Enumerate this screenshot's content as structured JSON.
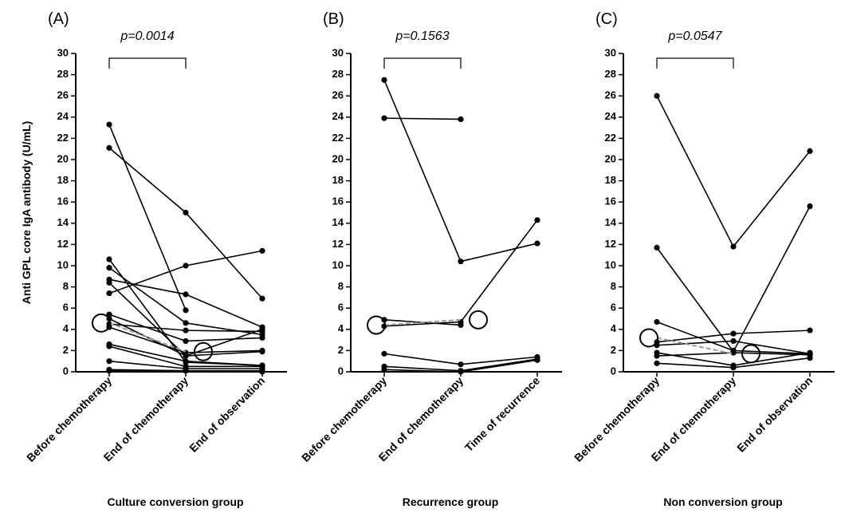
{
  "chart_data": [
    {
      "type": "line",
      "title": "(A)",
      "annotation": "p=0.0014",
      "xlabel": "Culture conversion group",
      "ylabel": "Anti GPL core IgA antibody (U/mL)",
      "categories": [
        "Before chemotherapy",
        "End of chemotherapy",
        "End of observation"
      ],
      "ylim": [
        0,
        30
      ],
      "yticks": [
        0,
        2,
        4,
        6,
        8,
        10,
        12,
        14,
        16,
        18,
        20,
        22,
        24,
        26,
        28,
        30
      ],
      "series": [
        {
          "color": "#000000",
          "values": [
            23.3,
            5.8,
            null
          ]
        },
        {
          "color": "#000000",
          "values": [
            21.1,
            15.0,
            6.9
          ]
        },
        {
          "color": "#000000",
          "values": [
            10.6,
            0.9,
            0.6
          ]
        },
        {
          "color": "#000000",
          "values": [
            9.8,
            4.6,
            3.5
          ]
        },
        {
          "color": "#000000",
          "values": [
            8.7,
            7.3,
            4.2
          ]
        },
        {
          "color": "#000000",
          "values": [
            8.4,
            1.5,
            1.9
          ]
        },
        {
          "color": "#000000",
          "values": [
            7.4,
            10.0,
            11.4
          ]
        },
        {
          "color": "#000000",
          "values": [
            5.4,
            2.9,
            3.2
          ]
        },
        {
          "color": "#000000",
          "values": [
            5.0,
            1.5,
            4.0
          ]
        },
        {
          "color": "#000000",
          "values": [
            4.5,
            3.9,
            3.8
          ]
        },
        {
          "color": "#000000",
          "values": [
            4.2,
            1.8,
            2.0
          ]
        },
        {
          "color": "#000000",
          "values": [
            2.6,
            1.0,
            0.6
          ]
        },
        {
          "color": "#000000",
          "values": [
            2.4,
            0.5,
            0.5
          ]
        },
        {
          "color": "#000000",
          "values": [
            1.0,
            0.3,
            0.3
          ]
        },
        {
          "color": "#000000",
          "values": [
            0.2,
            0.1,
            0.1
          ]
        },
        {
          "color": "#000000",
          "values": [
            0.1,
            0.1,
            0.0
          ]
        }
      ],
      "summary": {
        "color": "#999999",
        "values": [
          4.6,
          1.9,
          null
        ]
      }
    },
    {
      "type": "line",
      "title": "(B)",
      "annotation": "p=0.1563",
      "xlabel": "Recurrence group",
      "categories": [
        "Before chemotherapy",
        "End of chemotherapy",
        "Time of recurrence"
      ],
      "ylim": [
        0,
        30
      ],
      "yticks": [
        0,
        2,
        4,
        6,
        8,
        10,
        12,
        14,
        16,
        18,
        20,
        22,
        24,
        26,
        28,
        30
      ],
      "series": [
        {
          "color": "#000000",
          "values": [
            27.5,
            10.4,
            12.1
          ]
        },
        {
          "color": "#000000",
          "values": [
            23.9,
            23.8,
            null
          ]
        },
        {
          "color": "#000000",
          "values": [
            4.3,
            4.7,
            14.3
          ]
        },
        {
          "color": "#000000",
          "values": [
            4.9,
            4.4,
            null
          ]
        },
        {
          "color": "#000000",
          "values": [
            1.7,
            0.7,
            1.4
          ]
        },
        {
          "color": "#000000",
          "values": [
            0.5,
            0.1,
            1.2
          ]
        },
        {
          "color": "#000000",
          "values": [
            0.2,
            0.0,
            1.1
          ]
        }
      ],
      "summary": {
        "color": "#999999",
        "values": [
          4.4,
          4.9,
          null
        ]
      }
    },
    {
      "type": "line",
      "title": "(C)",
      "annotation": "p=0.0547",
      "xlabel": "Non conversion  group",
      "categories": [
        "Before chemotherapy",
        "End of chemotherapy",
        "End of observation"
      ],
      "ylim": [
        0,
        30
      ],
      "yticks": [
        0,
        2,
        4,
        6,
        8,
        10,
        12,
        14,
        16,
        18,
        20,
        22,
        24,
        26,
        28,
        30
      ],
      "series": [
        {
          "color": "#000000",
          "values": [
            26.0,
            11.8,
            20.8
          ]
        },
        {
          "color": "#000000",
          "values": [
            11.7,
            1.9,
            15.6
          ]
        },
        {
          "color": "#000000",
          "values": [
            4.7,
            2.0,
            1.7
          ]
        },
        {
          "color": "#000000",
          "values": [
            2.8,
            3.6,
            3.9
          ]
        },
        {
          "color": "#000000",
          "values": [
            2.5,
            2.9,
            1.7
          ]
        },
        {
          "color": "#000000",
          "values": [
            1.8,
            0.6,
            1.8
          ]
        },
        {
          "color": "#000000",
          "values": [
            1.5,
            1.8,
            1.6
          ]
        },
        {
          "color": "#000000",
          "values": [
            0.8,
            0.4,
            1.3
          ]
        }
      ],
      "summary": {
        "color": "#999999",
        "values": [
          3.2,
          1.7,
          null
        ]
      }
    }
  ]
}
